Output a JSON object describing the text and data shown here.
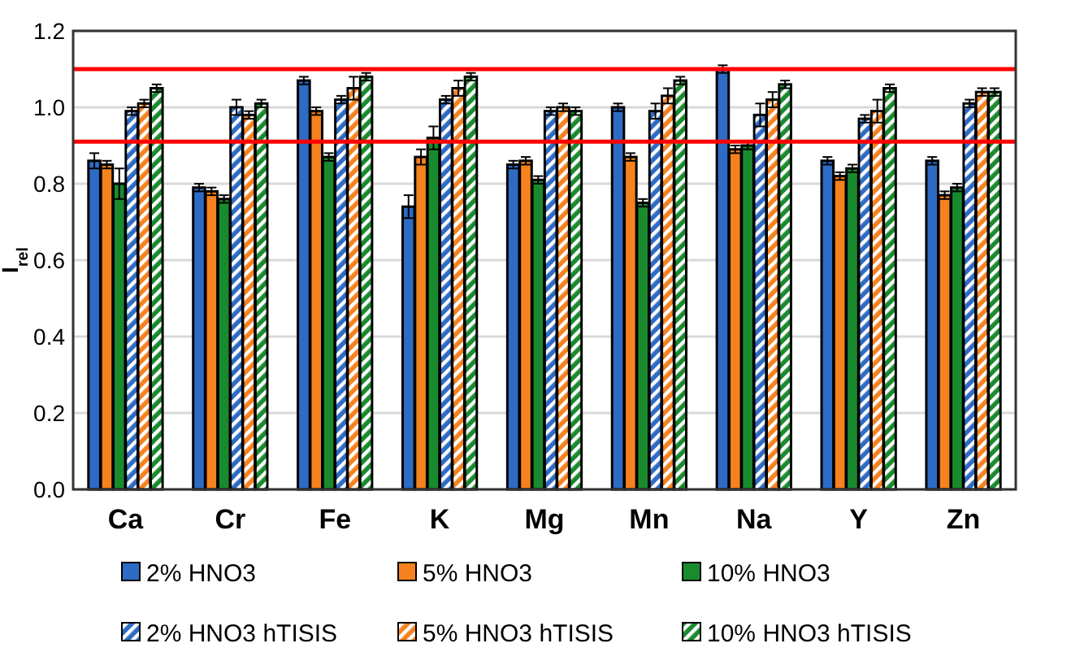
{
  "chart_data": {
    "type": "bar",
    "ylabel": "I$_{rel}$",
    "categories": [
      "Ca",
      "Cr",
      "Fe",
      "K",
      "Mg",
      "Mn",
      "Na",
      "Y",
      "Zn"
    ],
    "ylim": [
      0,
      1.2
    ],
    "yticks": [
      {
        "value": 0,
        "label": "0.0"
      },
      {
        "value": 0.2,
        "label": "0.2"
      },
      {
        "value": 0.4,
        "label": "0.4"
      },
      {
        "value": 0.6,
        "label": "0.6"
      },
      {
        "value": 0.8,
        "label": "0.8"
      },
      {
        "value": 1,
        "label": "1.0"
      },
      {
        "value": 1.2,
        "label": "1.2"
      }
    ],
    "grid": "y",
    "legend": "bottom",
    "ref_lines": [
      {
        "axis": "y",
        "value": 1.1,
        "color": "#ff0000"
      },
      {
        "axis": "y",
        "value": 0.91,
        "color": "#ff0000"
      }
    ],
    "series": [
      {
        "name": "2% HNO3",
        "color": "#2e6bc4",
        "values": [
          0.86,
          0.79,
          1.07,
          0.74,
          0.85,
          1.0,
          1.1,
          0.86,
          0.86
        ],
        "errors": [
          0.02,
          0.01,
          0.01,
          0.03,
          0.01,
          0.01,
          0.01,
          0.01,
          0.01
        ]
      },
      {
        "name": "5% HNO3",
        "color": "#f5821f",
        "values": [
          0.85,
          0.78,
          0.99,
          0.87,
          0.86,
          0.87,
          0.89,
          0.82,
          0.77
        ],
        "errors": [
          0.01,
          0.01,
          0.01,
          0.02,
          0.01,
          0.01,
          0.01,
          0.01,
          0.01
        ]
      },
      {
        "name": "10% HNO3",
        "color": "#1a8a2e",
        "values": [
          0.8,
          0.76,
          0.87,
          0.92,
          0.81,
          0.75,
          0.9,
          0.84,
          0.79
        ],
        "errors": [
          0.04,
          0.01,
          0.01,
          0.03,
          0.01,
          0.01,
          0.01,
          0.01,
          0.01
        ]
      },
      {
        "name": "2% HNO3 hTISIS",
        "color": "#2e6bc4",
        "values": [
          0.99,
          1.0,
          1.02,
          1.02,
          0.99,
          0.99,
          0.98,
          0.97,
          1.01
        ],
        "errors": [
          0.01,
          0.02,
          0.01,
          0.01,
          0.01,
          0.02,
          0.03,
          0.01,
          0.01
        ]
      },
      {
        "name": "5% HNO3 hTISIS",
        "color": "#f5821f",
        "values": [
          1.01,
          0.98,
          1.05,
          1.05,
          1.0,
          1.03,
          1.02,
          0.99,
          1.04
        ],
        "errors": [
          0.01,
          0.01,
          0.03,
          0.02,
          0.01,
          0.02,
          0.02,
          0.03,
          0.01
        ]
      },
      {
        "name": "10% HNO3 hTISIS",
        "color": "#1a8a2e",
        "values": [
          1.05,
          1.01,
          1.08,
          1.08,
          0.99,
          1.07,
          1.06,
          1.05,
          1.04
        ],
        "errors": [
          0.01,
          0.01,
          0.01,
          0.01,
          0.01,
          0.01,
          0.01,
          0.01,
          0.01
        ]
      }
    ]
  }
}
